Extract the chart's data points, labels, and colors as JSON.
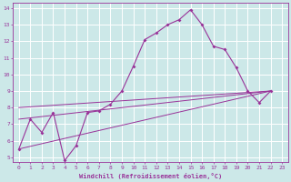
{
  "xlabel": "Windchill (Refroidissement éolien,°C)",
  "bg_color": "#cce8e8",
  "grid_color": "#ffffff",
  "line_color": "#993399",
  "xlim": [
    -0.5,
    23.5
  ],
  "ylim": [
    4.7,
    14.3
  ],
  "xticks": [
    0,
    1,
    2,
    3,
    4,
    5,
    6,
    7,
    8,
    9,
    10,
    11,
    12,
    13,
    14,
    15,
    16,
    17,
    18,
    19,
    20,
    21,
    22,
    23
  ],
  "yticks": [
    5,
    6,
    7,
    8,
    9,
    10,
    11,
    12,
    13,
    14
  ],
  "series_main": [
    [
      0,
      5.5
    ],
    [
      1,
      7.3
    ],
    [
      2,
      6.5
    ],
    [
      3,
      7.7
    ],
    [
      4,
      4.8
    ],
    [
      5,
      5.7
    ],
    [
      6,
      7.7
    ],
    [
      7,
      7.8
    ],
    [
      8,
      8.2
    ],
    [
      9,
      9.0
    ],
    [
      10,
      10.5
    ],
    [
      11,
      12.1
    ],
    [
      12,
      12.5
    ],
    [
      13,
      13.0
    ],
    [
      14,
      13.3
    ],
    [
      15,
      13.9
    ],
    [
      16,
      13.0
    ],
    [
      17,
      11.7
    ],
    [
      18,
      11.5
    ],
    [
      19,
      10.4
    ],
    [
      20,
      9.0
    ],
    [
      21,
      8.3
    ],
    [
      22,
      9.0
    ]
  ],
  "series_trend1": [
    [
      0,
      7.3
    ],
    [
      22,
      9.0
    ]
  ],
  "series_trend2": [
    [
      0,
      5.5
    ],
    [
      22,
      9.0
    ]
  ],
  "series_trend3": [
    [
      0,
      8.0
    ],
    [
      22,
      9.0
    ]
  ]
}
